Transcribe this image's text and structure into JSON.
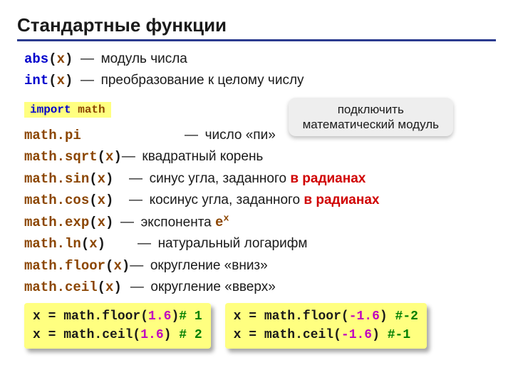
{
  "title": "Стандартные функции",
  "intro": [
    {
      "fn": "abs",
      "arg": "x",
      "desc": "модуль числа"
    },
    {
      "fn": "int",
      "arg": "x",
      "desc": "преобразование к целому числу"
    }
  ],
  "import": {
    "kw": "import",
    "mod": "math"
  },
  "callout": {
    "l1": "подключить",
    "l2": "математический модуль"
  },
  "funcs": [
    {
      "name": "math.pi",
      "arg": null,
      "desc_pre": "число «пи»",
      "red": null,
      "pad": 90
    },
    {
      "name": "math.sqrt",
      "arg": "x",
      "desc_pre": "квадратный корень",
      "red": null,
      "pad": 0
    },
    {
      "name": "math.sin",
      "arg": "x",
      "desc_pre": "синус угла, заданного ",
      "red": "в радианах",
      "pad": 12
    },
    {
      "name": "math.cos",
      "arg": "x",
      "desc_pre": "косинус угла, заданного ",
      "red": "в радианах",
      "pad": 12
    },
    {
      "name": "math.exp",
      "arg": "x",
      "desc_pre": "экспонента ",
      "expo": true,
      "pad": 0
    },
    {
      "name": "math.ln",
      "arg": "x",
      "desc_pre": "натуральный логарифм",
      "red": null,
      "pad": 24
    },
    {
      "name": "math.floor",
      "arg": "x",
      "desc_pre": "округление «вниз»",
      "red": null,
      "pad": 0
    },
    {
      "name": "math.ceil",
      "arg": "x",
      "desc_pre": "округление «вверх»",
      "red": null,
      "pad": 12
    }
  ],
  "ex_left": [
    {
      "pre": "x = math.floor(",
      "num": "1.6",
      "post": ")",
      "cmt": "# 1"
    },
    {
      "pre": "x = math.ceil(",
      "num": "1.6",
      "post": ") ",
      "cmt": "# 2"
    }
  ],
  "ex_right": [
    {
      "pre": "x = math.floor(",
      "num": "-1.6",
      "post": ") ",
      "cmt": "#-2"
    },
    {
      "pre": "x = math.ceil(",
      "num": "-1.6",
      "post": ")  ",
      "cmt": "#-1"
    }
  ],
  "colors": {
    "rule": "#2a3b8f",
    "highlight": "#ffff80",
    "blue": "#0000cc",
    "brown": "#8b4500",
    "green": "#007f00",
    "magenta": "#c000c0",
    "red": "#d00000",
    "callout_bg": "#eeeeee"
  },
  "expo": {
    "base": "e",
    "sup": "x"
  }
}
